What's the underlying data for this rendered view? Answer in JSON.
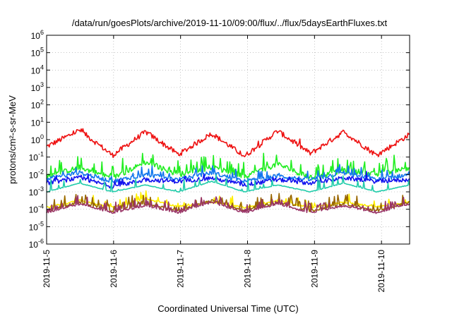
{
  "chart_data": {
    "type": "line",
    "title": "/data/run/goesPlots/archive/2019-11-10/09:00/flux/../flux/5daysEarthFluxes.txt",
    "xlabel": "Coordinated Universal Time (UTC)",
    "ylabel": "protons/cm²-s-sr-MeV",
    "y_scale": "log",
    "ylim_exponents": [
      -6,
      6
    ],
    "y_ticks": [
      {
        "base": "10",
        "exp": "-6"
      },
      {
        "base": "10",
        "exp": "-5"
      },
      {
        "base": "10",
        "exp": "-4"
      },
      {
        "base": "10",
        "exp": "-3"
      },
      {
        "base": "10",
        "exp": "-2"
      },
      {
        "base": "10",
        "exp": "-1"
      },
      {
        "base": "10",
        "exp": "0"
      },
      {
        "base": "10",
        "exp": "1"
      },
      {
        "base": "10",
        "exp": "2"
      },
      {
        "base": "10",
        "exp": "3"
      },
      {
        "base": "10",
        "exp": "4"
      },
      {
        "base": "10",
        "exp": "5"
      },
      {
        "base": "10",
        "exp": "6"
      }
    ],
    "x_ticks": [
      "2019-11-5",
      "2019-11-6",
      "2019-11-7",
      "2019-11-8",
      "2019-11-9",
      "2019-11-10"
    ],
    "x_range_days": [
      0,
      5.42
    ],
    "grid": true,
    "legend": "none",
    "series": [
      {
        "color": "#ee1111",
        "base": -0.35,
        "amp": 0.95,
        "noise": 0.15,
        "spike_prob": 0.02,
        "spike_amp": 0.3,
        "values": [
          -0.4,
          0.55,
          -0.9,
          0.45,
          -0.85,
          0.35,
          -0.95,
          0.5,
          -0.8,
          0.45,
          -0.9,
          0.3
        ]
      },
      {
        "color": "#22ee22",
        "base": -2.05,
        "amp": 0.1,
        "noise": 0.15,
        "spike_prob": 0.2,
        "spike_amp": 0.8,
        "values": [
          -2.1,
          -1.6,
          -2.2,
          -1.3,
          -2.0,
          -1.6,
          -2.1,
          -1.4,
          -2.2,
          -1.8,
          -2.0,
          -1.6
        ]
      },
      {
        "color": "#1177ee",
        "base": -2.3,
        "amp": 0.05,
        "noise": 0.12,
        "spike_prob": 0.12,
        "spike_amp": 0.5,
        "values": [
          -2.3,
          -1.9,
          -2.4,
          -2.0,
          -2.3,
          -1.9,
          -2.4,
          -2.1,
          -2.3,
          -1.9,
          -2.3,
          -2.0
        ]
      },
      {
        "color": "#1111ee",
        "base": -2.45,
        "amp": 0.05,
        "noise": 0.12,
        "spike_prob": 0.08,
        "spike_amp": 0.4,
        "values": [
          -2.5,
          -2.2,
          -2.7,
          -2.3,
          -2.4,
          -2.2,
          -2.6,
          -2.3,
          -2.5,
          -2.2,
          -2.4,
          -2.3
        ]
      },
      {
        "color": "#22ccaa",
        "base": -2.97,
        "amp": 0.0,
        "noise": 0.02,
        "spike_prob": 0.1,
        "spike_amp": 0.7,
        "values": [
          -3.0,
          -2.5,
          -3.0,
          -2.6,
          -3.0,
          -2.4,
          -3.0,
          -2.6,
          -3.0,
          -2.5,
          -3.0,
          -2.6
        ]
      },
      {
        "color": "#ffee00",
        "base": -3.85,
        "amp": 0.05,
        "noise": 0.05,
        "spike_prob": 0.1,
        "spike_amp": 0.5,
        "values": [
          -3.9,
          -3.5,
          -3.9,
          -3.4,
          -3.85,
          -3.6,
          -3.9,
          -3.5,
          -3.9,
          -3.6,
          -3.85,
          -3.6
        ]
      },
      {
        "color": "#996600",
        "base": -4.05,
        "amp": 0.03,
        "noise": 0.06,
        "spike_prob": 0.25,
        "spike_amp": 0.6,
        "values": [
          -4.1,
          -3.6,
          -4.1,
          -3.7,
          -4.1,
          -3.5,
          -4.1,
          -3.6,
          -4.1,
          -3.7,
          -4.1,
          -3.6
        ]
      },
      {
        "color": "#993366",
        "base": -4.15,
        "amp": 0.03,
        "noise": 0.05,
        "spike_prob": 0.25,
        "spike_amp": 0.55,
        "values": [
          -4.2,
          -3.7,
          -4.2,
          -3.8,
          -4.2,
          -3.6,
          -4.2,
          -3.7,
          -4.2,
          -3.8,
          -4.2,
          -3.7
        ]
      }
    ]
  }
}
